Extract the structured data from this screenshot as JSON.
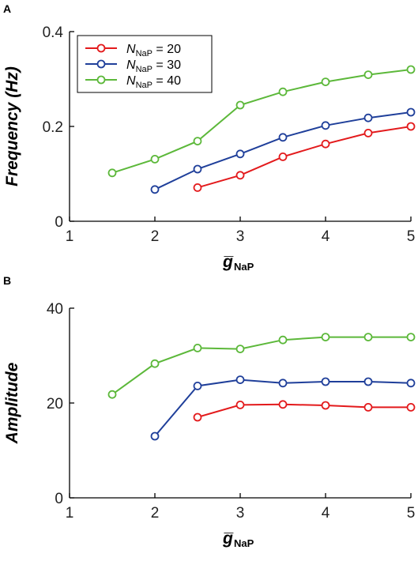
{
  "chart_data": [
    {
      "panel": "A",
      "type": "line",
      "title": "",
      "xlabel": "g̅",
      "xlabel_sub": "NaP",
      "ylabel": "Frequency (Hz)",
      "xlim": [
        1,
        5
      ],
      "ylim": [
        0,
        0.4
      ],
      "xticks": [
        1,
        2,
        3,
        4,
        5
      ],
      "yticks": [
        0,
        0.2,
        0.4
      ],
      "ytick_labels": [
        "0",
        "0.2",
        "0.4"
      ],
      "grid": false,
      "legend_position": "top-left",
      "series": [
        {
          "label_var": "N",
          "label_sub": "NaP",
          "label_value": "= 20",
          "color": "#e31a1c",
          "x": [
            2.5,
            3,
            3.5,
            4,
            4.5,
            5
          ],
          "y": [
            0.071,
            0.097,
            0.136,
            0.163,
            0.186,
            0.2
          ]
        },
        {
          "label_var": "N",
          "label_sub": "NaP",
          "label_value": "= 30",
          "color": "#1f3f9a",
          "x": [
            2,
            2.5,
            3,
            3.5,
            4,
            4.5,
            5
          ],
          "y": [
            0.067,
            0.11,
            0.142,
            0.177,
            0.202,
            0.218,
            0.23
          ]
        },
        {
          "label_var": "N",
          "label_sub": "NaP",
          "label_value": "= 40",
          "color": "#5cb83a",
          "x": [
            1.5,
            2,
            2.5,
            3,
            3.5,
            4,
            4.5,
            5
          ],
          "y": [
            0.102,
            0.131,
            0.169,
            0.245,
            0.273,
            0.294,
            0.309,
            0.32
          ]
        }
      ]
    },
    {
      "panel": "B",
      "type": "line",
      "title": "",
      "xlabel": "g̅",
      "xlabel_sub": "NaP",
      "ylabel": "Amplitude",
      "xlim": [
        1,
        5
      ],
      "ylim": [
        0,
        40
      ],
      "xticks": [
        1,
        2,
        3,
        4,
        5
      ],
      "yticks": [
        0,
        20,
        40
      ],
      "ytick_labels": [
        "0",
        "20",
        "40"
      ],
      "grid": false,
      "series": [
        {
          "color": "#e31a1c",
          "x": [
            2.5,
            3,
            3.5,
            4,
            4.5,
            5
          ],
          "y": [
            17.0,
            19.6,
            19.7,
            19.5,
            19.1,
            19.1
          ]
        },
        {
          "color": "#1f3f9a",
          "x": [
            2,
            2.5,
            3,
            3.5,
            4,
            4.5,
            5
          ],
          "y": [
            13.0,
            23.6,
            24.9,
            24.2,
            24.5,
            24.5,
            24.2
          ]
        },
        {
          "color": "#5cb83a",
          "x": [
            1.5,
            2,
            2.5,
            3,
            3.5,
            4,
            4.5,
            5
          ],
          "y": [
            21.8,
            28.3,
            31.6,
            31.4,
            33.3,
            33.9,
            33.9,
            33.9
          ]
        }
      ]
    }
  ]
}
